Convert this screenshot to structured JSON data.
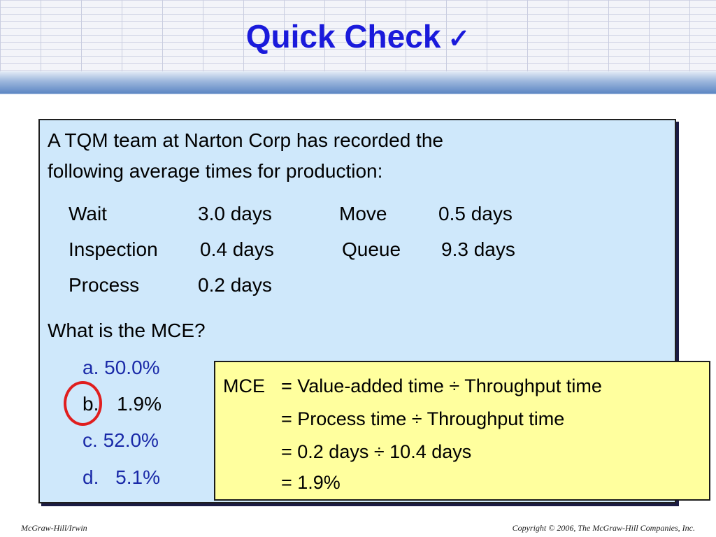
{
  "slide": {
    "title": "Quick Check",
    "title_check": "✓"
  },
  "question": {
    "intro_line1": "A TQM team at Narton Corp has recorded the",
    "intro_line2": "following average times for production:",
    "times": [
      {
        "label": "Wait",
        "value": "3.0 days"
      },
      {
        "label": "Move",
        "value": "0.5 days"
      },
      {
        "label": "Inspection",
        "value": "0.4 days"
      },
      {
        "label": "Queue",
        "value": "9.3 days"
      },
      {
        "label": "Process",
        "value": "0.2 days"
      }
    ],
    "prompt": "What is the MCE?",
    "choices": [
      {
        "letter": "a.",
        "value": "50.0%"
      },
      {
        "letter": "b.",
        "value": "1.9%"
      },
      {
        "letter": "c.",
        "value": "52.0%"
      },
      {
        "letter": "d.",
        "value": "5.1%"
      }
    ],
    "selected_choice": "b"
  },
  "answer": {
    "lhs": "MCE",
    "lines": [
      "= Value-added time ÷ Throughput time",
      "= Process time ÷ Throughput time",
      "= 0.2 days ÷ 10.4 days",
      "= 1.9%"
    ]
  },
  "footer": {
    "left": "McGraw-Hill/Irwin",
    "right": "Copyright © 2006, The McGraw-Hill Companies, Inc."
  },
  "colors": {
    "title": "#1a1adb",
    "question_bg": "#cfe8fb",
    "answer_bg": "#ffff9e",
    "choice_text": "#1a2aa8",
    "circle": "#e01e1e"
  }
}
